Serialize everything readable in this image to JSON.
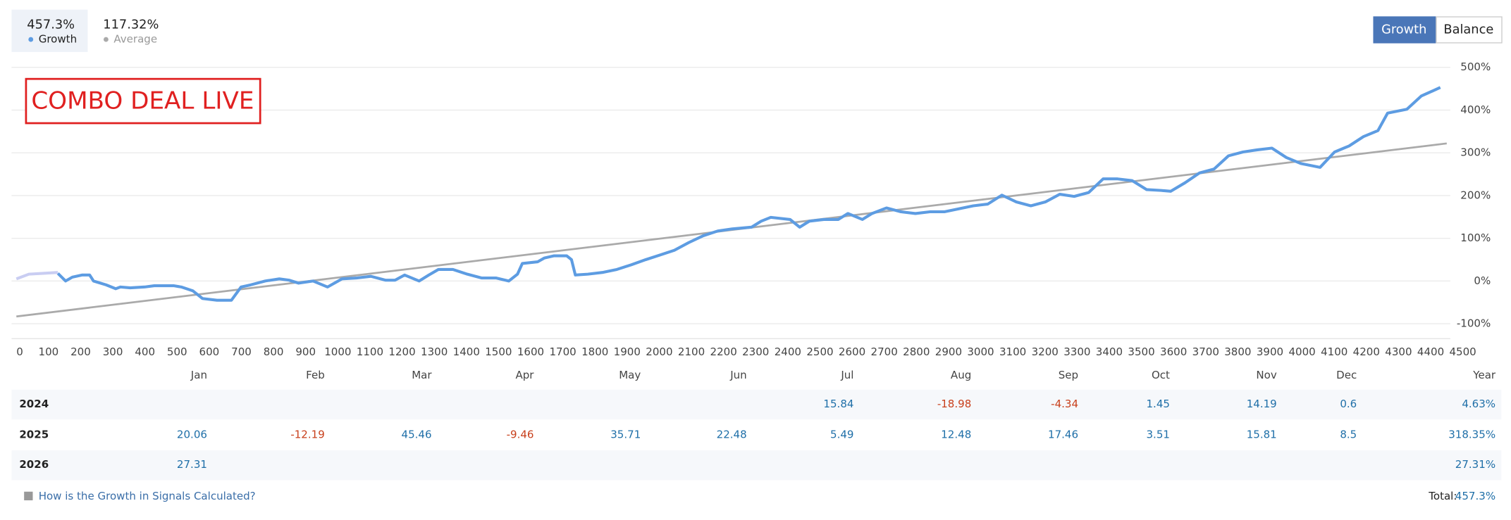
{
  "summary": [
    "457.3%",
    "117.32%"
  ],
  "toggle": [
    "Growth",
    "Balance"
  ],
  "chart_data": {
    "type": "line",
    "annotation": "COMBO DEAL LIVE",
    "xlim": [
      0,
      4500
    ],
    "ylim": [
      -135,
      500
    ],
    "xticks": [
      0,
      100,
      200,
      300,
      400,
      500,
      600,
      700,
      800,
      900,
      1000,
      1100,
      1200,
      1300,
      1400,
      1500,
      1600,
      1700,
      1800,
      1900,
      2000,
      2100,
      2200,
      2300,
      2400,
      2500,
      2600,
      2700,
      2800,
      2900,
      3000,
      3100,
      3200,
      3300,
      3400,
      3500,
      3600,
      3700,
      3800,
      3900,
      4000,
      4100,
      4200,
      4300,
      4400,
      4500
    ],
    "yticks": [
      {
        "value": -100,
        "label": "-100%"
      },
      {
        "value": 0,
        "label": "0%"
      },
      {
        "value": 100,
        "label": "100%"
      },
      {
        "value": 200,
        "label": "200%"
      },
      {
        "value": 300,
        "label": "300%"
      },
      {
        "value": 400,
        "label": "400%"
      },
      {
        "value": 500,
        "label": "500%"
      }
    ],
    "grid": true,
    "series": [
      {
        "name": "Growth",
        "color": "#5d9ce2",
        "x": [
          129,
          153,
          174,
          204,
          228,
          240,
          279,
          309,
          324,
          354,
          399,
          429,
          489,
          513,
          549,
          579,
          624,
          669,
          699,
          729,
          774,
          818,
          848,
          878,
          923,
          968,
          1013,
          1058,
          1103,
          1148,
          1178,
          1208,
          1253,
          1283,
          1313,
          1358,
          1403,
          1448,
          1493,
          1532,
          1559,
          1574,
          1622,
          1643,
          1673,
          1712,
          1727,
          1739,
          1778,
          1823,
          1868,
          1913,
          1958,
          2003,
          2047,
          2092,
          2137,
          2182,
          2227,
          2287,
          2317,
          2347,
          2407,
          2437,
          2467,
          2512,
          2557,
          2587,
          2632,
          2662,
          2707,
          2752,
          2797,
          2842,
          2887,
          2932,
          2977,
          3022,
          3066,
          3111,
          3156,
          3201,
          3246,
          3291,
          3336,
          3381,
          3426,
          3471,
          3516,
          3561,
          3591,
          3636,
          3681,
          3726,
          3771,
          3816,
          3861,
          3906,
          3951,
          3996,
          4056,
          4101,
          4146,
          4191,
          4236,
          4266,
          4326,
          4371,
          4430
        ],
        "values": [
          18,
          0,
          9,
          14,
          14,
          0,
          -9,
          -18,
          -14,
          -16,
          -14,
          -11,
          -11,
          -14,
          -23,
          -41,
          -45,
          -45,
          -14,
          -9,
          0,
          5,
          2,
          -5,
          0,
          -14,
          5,
          7,
          11,
          2,
          2,
          14,
          0,
          14,
          27,
          27,
          16,
          7,
          7,
          0,
          16,
          41,
          45,
          54,
          59,
          59,
          50,
          14,
          16,
          20,
          27,
          38,
          50,
          61,
          72,
          90,
          106,
          117,
          122,
          126,
          140,
          149,
          144,
          126,
          140,
          144,
          144,
          158,
          144,
          158,
          171,
          162,
          158,
          162,
          162,
          169,
          176,
          180,
          201,
          185,
          176,
          185,
          203,
          198,
          207,
          239,
          239,
          235,
          214,
          212,
          210,
          230,
          253,
          262,
          293,
          302,
          307,
          311,
          289,
          275,
          266,
          302,
          316,
          338,
          352,
          393,
          402,
          433,
          453
        ]
      },
      {
        "name": "Average",
        "color": "#aaaaaa",
        "x": [
          0,
          4450
        ],
        "values": [
          -83,
          322
        ]
      },
      {
        "color": "#c9cdf2",
        "x": [
          0,
          39,
          84,
          129
        ],
        "values": [
          5,
          16,
          18,
          20
        ]
      }
    ]
  },
  "table": {
    "header": [
      "Jan",
      "Feb",
      "Mar",
      "Apr",
      "May",
      "Jun",
      "Jul",
      "Aug",
      "Sep",
      "Oct",
      "Nov",
      "Dec",
      "Year"
    ],
    "rows": [
      [
        "2024",
        null,
        null,
        null,
        null,
        null,
        null,
        "15.84",
        "-18.98",
        "-4.34",
        "1.45",
        "14.19",
        "0.6",
        "4.63%"
      ],
      [
        "2025",
        "20.06",
        "-12.19",
        "45.46",
        "-9.46",
        "35.71",
        "22.48",
        "5.49",
        "12.48",
        "17.46",
        "3.51",
        "15.81",
        "8.5",
        "318.35%"
      ],
      [
        "2026",
        "27.31",
        null,
        null,
        null,
        null,
        null,
        null,
        null,
        null,
        null,
        null,
        null,
        "27.31%"
      ]
    ]
  },
  "footer": {
    "link": "How is the Growth in Signals Calculated?",
    "total_label": "Total:",
    "total": "457.3%"
  }
}
